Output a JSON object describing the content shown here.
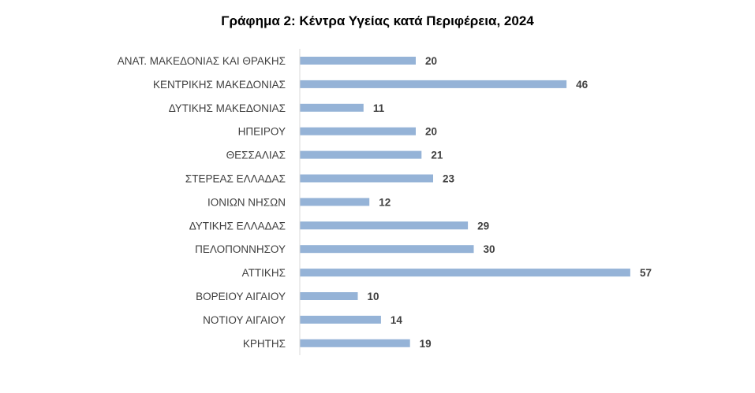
{
  "chart_data": {
    "type": "bar",
    "orientation": "horizontal",
    "title": "Γράφημα 2: Κέντρα Υγείας κατά Περιφέρεια, 2024",
    "xlabel": "",
    "ylabel": "",
    "categories": [
      "ΑΝΑΤ. ΜΑΚΕΔΟΝΙΑΣ ΚΑΙ ΘΡΑΚΗΣ",
      "ΚΕΝΤΡΙΚΗΣ ΜΑΚΕΔΟΝΙΑΣ",
      "ΔΥΤΙΚΗΣ ΜΑΚΕΔΟΝΙΑΣ",
      "ΗΠΕΙΡΟΥ",
      "ΘΕΣΣΑΛΙΑΣ",
      "ΣΤΕΡΕΑΣ ΕΛΛΑΔΑΣ",
      "ΙΟΝΙΩΝ ΝΗΣΩΝ",
      "ΔΥΤΙΚΗΣ ΕΛΛΑΔΑΣ",
      "ΠΕΛΟΠΟΝΝΗΣΟΥ",
      "ΑΤΤΙΚΗΣ",
      "ΒΟΡΕΙΟΥ ΑΙΓΑΙΟΥ",
      "ΝΟΤΙΟΥ ΑΙΓΑΙΟΥ",
      "ΚΡΗΤΗΣ"
    ],
    "values": [
      20,
      46,
      11,
      20,
      21,
      23,
      12,
      29,
      30,
      57,
      10,
      14,
      19
    ],
    "xlim": [
      0,
      60
    ],
    "grid": false,
    "legend": "none",
    "data_labels": true,
    "bar_color": "#95b3d7",
    "axis_color": "#d9d9d9",
    "label_color": "#404040"
  }
}
